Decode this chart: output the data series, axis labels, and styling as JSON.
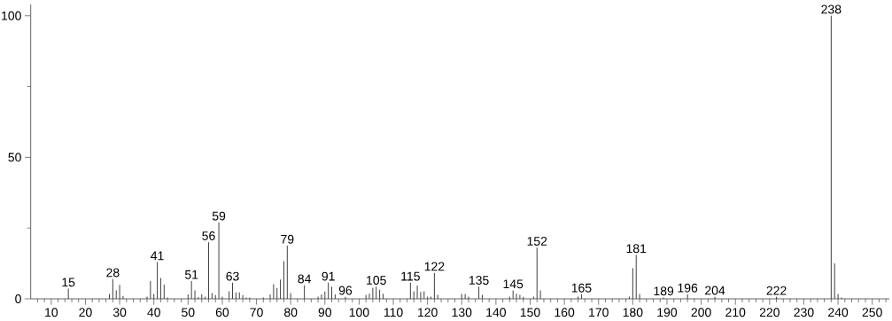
{
  "chart_data": {
    "type": "bar",
    "x": [
      15,
      27,
      28,
      29,
      30,
      31,
      38,
      39,
      40,
      41,
      42,
      43,
      44,
      50,
      51,
      52,
      53,
      54,
      55,
      56,
      57,
      58,
      59,
      60,
      62,
      63,
      64,
      65,
      66,
      67,
      68,
      72,
      74,
      75,
      76,
      77,
      78,
      79,
      80,
      84,
      88,
      89,
      90,
      91,
      92,
      93,
      96,
      102,
      103,
      104,
      105,
      106,
      107,
      115,
      116,
      117,
      118,
      119,
      120,
      121,
      122,
      123,
      130,
      131,
      132,
      135,
      136,
      144,
      145,
      146,
      147,
      148,
      151,
      152,
      153,
      164,
      165,
      179,
      180,
      181,
      182,
      189,
      196,
      204,
      222,
      238,
      239,
      240,
      241
    ],
    "values": [
      3.6,
      1.7,
      7,
      3,
      4.9,
      1,
      0.8,
      6.3,
      1.7,
      13,
      7.4,
      5,
      0.5,
      1.6,
      6.3,
      3,
      0.6,
      1.6,
      0.8,
      20,
      2,
      1.3,
      27,
      0.8,
      2.7,
      5.7,
      2.3,
      2.3,
      1.3,
      0.5,
      0.5,
      0.5,
      1.6,
      5.2,
      3.8,
      6.8,
      13.3,
      18.8,
      2,
      4.8,
      0.8,
      1.6,
      2.6,
      5.7,
      4.3,
      1.6,
      0.7,
      1.4,
      1.8,
      3.9,
      4.3,
      3.2,
      1.8,
      5.7,
      2.7,
      4.7,
      2.4,
      2.7,
      0.8,
      0.8,
      9.2,
      1.4,
      1.7,
      1.7,
      0.8,
      4.3,
      1.4,
      0.8,
      3,
      1.8,
      1.4,
      0.7,
      0.8,
      18.1,
      3,
      0.8,
      1.6,
      0.8,
      10.8,
      15.5,
      1.7,
      0.5,
      1.6,
      0.7,
      0.7,
      100,
      12.5,
      1.7,
      0.5
    ],
    "color": "#404040",
    "xlim": [
      4,
      255
    ],
    "ylim": [
      0,
      104
    ],
    "xticks": [
      {
        "value": 6,
        "label": null
      },
      {
        "value": 8,
        "label": null
      },
      10,
      {
        "value": 12,
        "label": null
      },
      {
        "value": 14,
        "label": null
      },
      {
        "value": 16,
        "label": null
      },
      {
        "value": 18,
        "label": null
      },
      20,
      {
        "value": 22,
        "label": null
      },
      {
        "value": 24,
        "label": null
      },
      {
        "value": 26,
        "label": null
      },
      {
        "value": 28,
        "label": null
      },
      30,
      {
        "value": 32,
        "label": null
      },
      {
        "value": 34,
        "label": null
      },
      {
        "value": 36,
        "label": null
      },
      {
        "value": 38,
        "label": null
      },
      40,
      {
        "value": 42,
        "label": null
      },
      {
        "value": 44,
        "label": null
      },
      {
        "value": 46,
        "label": null
      },
      {
        "value": 48,
        "label": null
      },
      50,
      {
        "value": 52,
        "label": null
      },
      {
        "value": 54,
        "label": null
      },
      {
        "value": 56,
        "label": null
      },
      {
        "value": 58,
        "label": null
      },
      60,
      {
        "value": 62,
        "label": null
      },
      {
        "value": 64,
        "label": null
      },
      {
        "value": 66,
        "label": null
      },
      {
        "value": 68,
        "label": null
      },
      70,
      {
        "value": 72,
        "label": null
      },
      {
        "value": 74,
        "label": null
      },
      {
        "value": 76,
        "label": null
      },
      {
        "value": 78,
        "label": null
      },
      80,
      {
        "value": 82,
        "label": null
      },
      {
        "value": 84,
        "label": null
      },
      {
        "value": 86,
        "label": null
      },
      {
        "value": 88,
        "label": null
      },
      90,
      {
        "value": 92,
        "label": null
      },
      {
        "value": 94,
        "label": null
      },
      {
        "value": 96,
        "label": null
      },
      {
        "value": 98,
        "label": null
      },
      100,
      {
        "value": 102,
        "label": null
      },
      {
        "value": 104,
        "label": null
      },
      {
        "value": 106,
        "label": null
      },
      {
        "value": 108,
        "label": null
      },
      110,
      {
        "value": 112,
        "label": null
      },
      {
        "value": 114,
        "label": null
      },
      {
        "value": 116,
        "label": null
      },
      {
        "value": 118,
        "label": null
      },
      120,
      {
        "value": 122,
        "label": null
      },
      {
        "value": 124,
        "label": null
      },
      {
        "value": 126,
        "label": null
      },
      {
        "value": 128,
        "label": null
      },
      130,
      {
        "value": 132,
        "label": null
      },
      {
        "value": 134,
        "label": null
      },
      {
        "value": 136,
        "label": null
      },
      {
        "value": 138,
        "label": null
      },
      140,
      {
        "value": 142,
        "label": null
      },
      {
        "value": 144,
        "label": null
      },
      {
        "value": 146,
        "label": null
      },
      {
        "value": 148,
        "label": null
      },
      150,
      {
        "value": 152,
        "label": null
      },
      {
        "value": 154,
        "label": null
      },
      {
        "value": 156,
        "label": null
      },
      {
        "value": 158,
        "label": null
      },
      160,
      {
        "value": 162,
        "label": null
      },
      {
        "value": 164,
        "label": null
      },
      {
        "value": 166,
        "label": null
      },
      {
        "value": 168,
        "label": null
      },
      170,
      {
        "value": 172,
        "label": null
      },
      {
        "value": 174,
        "label": null
      },
      {
        "value": 176,
        "label": null
      },
      {
        "value": 178,
        "label": null
      },
      180,
      {
        "value": 182,
        "label": null
      },
      {
        "value": 184,
        "label": null
      },
      {
        "value": 186,
        "label": null
      },
      {
        "value": 188,
        "label": null
      },
      190,
      {
        "value": 192,
        "label": null
      },
      {
        "value": 194,
        "label": null
      },
      {
        "value": 196,
        "label": null
      },
      {
        "value": 198,
        "label": null
      },
      200,
      {
        "value": 202,
        "label": null
      },
      {
        "value": 204,
        "label": null
      },
      {
        "value": 206,
        "label": null
      },
      {
        "value": 208,
        "label": null
      },
      210,
      {
        "value": 212,
        "label": null
      },
      {
        "value": 214,
        "label": null
      },
      {
        "value": 216,
        "label": null
      },
      {
        "value": 218,
        "label": null
      },
      220,
      {
        "value": 222,
        "label": null
      },
      {
        "value": 224,
        "label": null
      },
      {
        "value": 226,
        "label": null
      },
      {
        "value": 228,
        "label": null
      },
      230,
      {
        "value": 232,
        "label": null
      },
      {
        "value": 234,
        "label": null
      },
      {
        "value": 236,
        "label": null
      },
      {
        "value": 238,
        "label": null
      },
      240,
      {
        "value": 242,
        "label": null
      },
      {
        "value": 244,
        "label": null
      },
      {
        "value": 246,
        "label": null
      },
      {
        "value": 248,
        "label": null
      },
      250,
      {
        "value": 252,
        "label": null
      },
      {
        "value": 254,
        "label": null
      }
    ],
    "yticks": [
      0,
      {
        "value": 25,
        "label": null
      },
      50,
      {
        "value": 75,
        "label": null
      },
      100
    ],
    "annotations": [
      {
        "text": "15",
        "x": 15,
        "y": 3.6
      },
      {
        "text": "28",
        "x": 28,
        "y": 7
      },
      {
        "text": "41",
        "x": 41,
        "y": 13
      },
      {
        "text": "51",
        "x": 51,
        "y": 6.3
      },
      {
        "text": "56",
        "x": 56,
        "y": 20
      },
      {
        "text": "59",
        "x": 59,
        "y": 27
      },
      {
        "text": "63",
        "x": 63,
        "y": 5.7
      },
      {
        "text": "79",
        "x": 79,
        "y": 18.8
      },
      {
        "text": "84",
        "x": 84,
        "y": 4.8
      },
      {
        "text": "91",
        "x": 91,
        "y": 5.7
      },
      {
        "text": "96",
        "x": 96,
        "y": 0.7
      },
      {
        "text": "105",
        "x": 105,
        "y": 4.3
      },
      {
        "text": "115",
        "x": 115,
        "y": 5.7
      },
      {
        "text": "122",
        "x": 122,
        "y": 9.2
      },
      {
        "text": "135",
        "x": 135,
        "y": 4.3
      },
      {
        "text": "145",
        "x": 145,
        "y": 3
      },
      {
        "text": "152",
        "x": 152,
        "y": 18.1
      },
      {
        "text": "165",
        "x": 165,
        "y": 1.6
      },
      {
        "text": "181",
        "x": 181,
        "y": 15.5
      },
      {
        "text": "189",
        "x": 189,
        "y": 0.5
      },
      {
        "text": "196",
        "x": 196,
        "y": 1.6
      },
      {
        "text": "204",
        "x": 204,
        "y": 0.7
      },
      {
        "text": "222",
        "x": 222,
        "y": 0.7
      },
      {
        "text": "238",
        "x": 238,
        "y": 100
      }
    ]
  }
}
